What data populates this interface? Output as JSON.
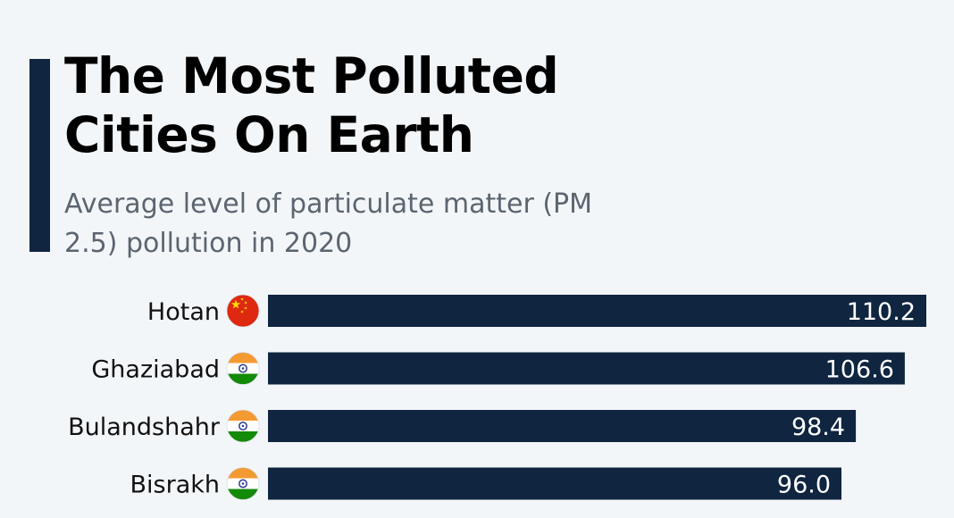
{
  "header": {
    "title": "The Most Polluted Cities On Earth",
    "subtitle": "Average level of particulate matter (PM 2.5) pollution in 2020"
  },
  "colors": {
    "bar": "#0f2540",
    "accent": "#0f2540",
    "background": "#f3f6f9"
  },
  "chart_data": {
    "type": "bar",
    "orientation": "horizontal",
    "title": "The Most Polluted Cities On Earth",
    "subtitle": "Average level of particulate matter (PM 2.5) pollution in 2020",
    "categories": [
      "Hotan",
      "Ghaziabad",
      "Bulandshahr",
      "Bisrakh"
    ],
    "values": [
      110.2,
      106.6,
      98.4,
      96.0
    ],
    "value_labels": [
      "110.2",
      "106.6",
      "98.4",
      "96.0"
    ],
    "flags": [
      "china-flag-icon",
      "india-flag-icon",
      "india-flag-icon",
      "india-flag-icon"
    ],
    "xlim": [
      0,
      110.2
    ],
    "grid": false
  }
}
